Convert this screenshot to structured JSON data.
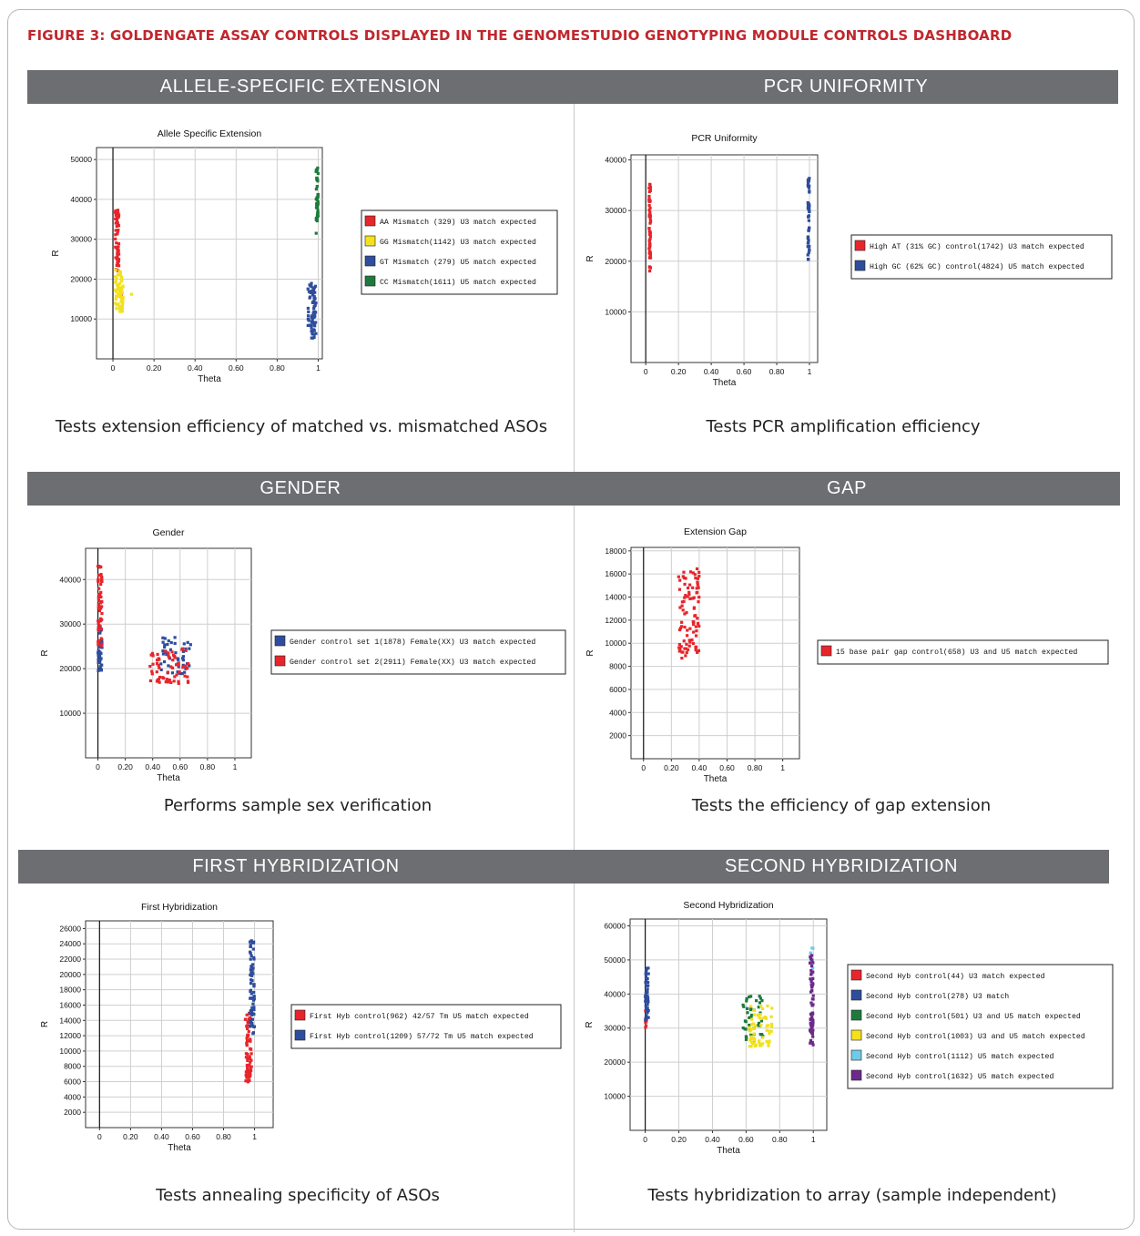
{
  "figure_title": "FIGURE 3: GOLDENGATE ASSAY CONTROLS DISPLAYED IN THE GENOMESTUDIO GENOTYPING MODULE CONTROLS DASHBOARD",
  "panels": [
    {
      "id": "ase",
      "banner": "ALLELE-SPECIFIC EXTENSION",
      "caption": "Tests extension efficiency of matched vs. mismatched ASOs"
    },
    {
      "id": "pcr",
      "banner": "PCR UNIFORMITY",
      "caption": "Tests PCR amplification efficiency"
    },
    {
      "id": "gender",
      "banner": "GENDER",
      "caption": "Performs sample sex verification"
    },
    {
      "id": "gap",
      "banner": "GAP",
      "caption": "Tests the efficiency of gap extension"
    },
    {
      "id": "hyb1",
      "banner": "FIRST HYBRIDIZATION",
      "caption": "Tests annealing specificity of ASOs"
    },
    {
      "id": "hyb2",
      "banner": "SECOND HYBRIDIZATION",
      "caption": "Tests hybridization to array (sample independent)"
    }
  ],
  "colors": {
    "red": "#e8252b",
    "yellow": "#f2e11c",
    "blue": "#2e4d9c",
    "green": "#1e7a3c",
    "cyan": "#6fcbe8",
    "purple": "#6c2a8a",
    "banner": "#6d6e71",
    "title": "#c0272d"
  },
  "chart_data": [
    {
      "type": "scatter",
      "title": "Allele Specific Extension",
      "xlabel": "Theta",
      "ylabel": "R",
      "xlim": [
        -0.08,
        1.02
      ],
      "ylim": [
        0,
        53000
      ],
      "xticks": [
        "0",
        "0.20",
        "0.40",
        "0.60",
        "0.80",
        "1"
      ],
      "yticks": [
        "10000",
        "20000",
        "30000",
        "40000",
        "50000"
      ],
      "grid": true,
      "legend_placement": "right",
      "series": [
        {
          "name": "AA Mismatch (329) U3 match expected",
          "color": "red",
          "x_range": [
            0.01,
            0.03
          ],
          "y_range": [
            22000,
            37500
          ],
          "n": 60,
          "extra": [
            [
              0.04,
              16000
            ]
          ]
        },
        {
          "name": "GG Mismatch(1142) U3 match expected",
          "color": "yellow",
          "x_range": [
            0.01,
            0.05
          ],
          "y_range": [
            11500,
            22500
          ],
          "n": 70,
          "extra": [
            [
              0.09,
              16200
            ]
          ]
        },
        {
          "name": "GT Mismatch (279) U5 match expected",
          "color": "blue",
          "x_range": [
            0.95,
            0.99
          ],
          "y_range": [
            5200,
            19000
          ],
          "n": 70
        },
        {
          "name": "CC Mismatch(1611) U5 match expected",
          "color": "green",
          "x_range": [
            0.99,
            1.0
          ],
          "y_range": [
            34500,
            48000
          ],
          "n": 45,
          "extra": [
            [
              0.99,
              31500
            ]
          ]
        }
      ]
    },
    {
      "type": "scatter",
      "title": "PCR Uniformity",
      "xlabel": "Theta",
      "ylabel": "R",
      "xlim": [
        -0.09,
        1.05
      ],
      "ylim": [
        0,
        41000
      ],
      "xticks": [
        "0",
        "0.20",
        "0.40",
        "0.60",
        "0.80",
        "1"
      ],
      "yticks": [
        "10000",
        "20000",
        "30000",
        "40000"
      ],
      "grid": true,
      "legend_placement": "right",
      "series": [
        {
          "name": "High AT (31% GC) control(1742) U3 match expected",
          "color": "red",
          "x_range": [
            0.02,
            0.03
          ],
          "y_range": [
            18000,
            35500
          ],
          "n": 60
        },
        {
          "name": "High GC (62% GC) control(4824) U5 match expected",
          "color": "blue",
          "x_range": [
            0.99,
            1.0
          ],
          "y_range": [
            20000,
            37000
          ],
          "n": 50
        }
      ]
    },
    {
      "type": "scatter",
      "title": "Gender",
      "xlabel": "Theta",
      "ylabel": "R",
      "xlim": [
        -0.09,
        1.12
      ],
      "ylim": [
        0,
        47000
      ],
      "xticks": [
        "0",
        "0.20",
        "0.40",
        "0.60",
        "0.80",
        "1"
      ],
      "yticks": [
        "10000",
        "20000",
        "30000",
        "40000"
      ],
      "grid": true,
      "legend_placement": "right",
      "series": [
        {
          "name": "Gender control set 1(1878) Female(XX) U3 match expected",
          "color": "blue",
          "x_range": [
            0.0,
            0.03
          ],
          "y_range": [
            19500,
            30000
          ],
          "n": 40,
          "cluster": {
            "x_range": [
              0.45,
              0.68
            ],
            "y_range": [
              18500,
              27000
            ],
            "n": 45
          }
        },
        {
          "name": "Gender control set 2(2911) Female(XX) U3 match expected",
          "color": "red",
          "x_range": [
            0.0,
            0.03
          ],
          "y_range": [
            25000,
            43000
          ],
          "n": 50,
          "cluster": {
            "x_range": [
              0.38,
              0.66
            ],
            "y_range": [
              16500,
              24500
            ],
            "n": 60
          }
        }
      ]
    },
    {
      "type": "scatter",
      "title": "Extension Gap",
      "xlabel": "Theta",
      "ylabel": "R",
      "xlim": [
        -0.09,
        1.12
      ],
      "ylim": [
        0,
        18300
      ],
      "xticks": [
        "0",
        "0.20",
        "0.40",
        "0.60",
        "0.80",
        "1"
      ],
      "yticks": [
        "2000",
        "4000",
        "6000",
        "8000",
        "10000",
        "12000",
        "14000",
        "16000",
        "18000"
      ],
      "grid": true,
      "legend_placement": "right",
      "series": [
        {
          "name": "15 base pair gap control(658) U3 and U5 match expected",
          "color": "red",
          "x_range": [
            0.25,
            0.4
          ],
          "y_range": [
            8600,
            16500
          ],
          "n": 90
        }
      ]
    },
    {
      "type": "scatter",
      "title": "First Hybridization",
      "xlabel": "Theta",
      "ylabel": "R",
      "xlim": [
        -0.09,
        1.12
      ],
      "ylim": [
        0,
        27000
      ],
      "xticks": [
        "0",
        "0.20",
        "0.40",
        "0.60",
        "0.80",
        "1"
      ],
      "yticks": [
        "2000",
        "4000",
        "6000",
        "8000",
        "10000",
        "12000",
        "14000",
        "16000",
        "18000",
        "20000",
        "22000",
        "24000",
        "26000"
      ],
      "grid": true,
      "legend_placement": "right",
      "series": [
        {
          "name": "First Hyb control(962) 42/57 Tm U5 match expected",
          "color": "red",
          "x_range": [
            0.94,
            0.98
          ],
          "y_range": [
            5200,
            15000
          ],
          "n": 70
        },
        {
          "name": "First Hyb control(1209) 57/72 Tm U5 match expected",
          "color": "blue",
          "x_range": [
            0.97,
            1.0
          ],
          "y_range": [
            12000,
            24500
          ],
          "n": 70
        }
      ]
    },
    {
      "type": "scatter",
      "title": "Second Hybridization",
      "xlabel": "Theta",
      "ylabel": "R",
      "xlim": [
        -0.09,
        1.08
      ],
      "ylim": [
        0,
        62000
      ],
      "xticks": [
        "0",
        "0.20",
        "0.40",
        "0.60",
        "0.80",
        "1"
      ],
      "yticks": [
        "10000",
        "20000",
        "30000",
        "40000",
        "50000",
        "60000"
      ],
      "grid": true,
      "legend_placement": "right",
      "series": [
        {
          "name": "Second Hyb control(44) U3 match expected",
          "color": "red",
          "x_range": [
            0.0,
            0.01
          ],
          "y_range": [
            30000,
            36000
          ],
          "n": 8
        },
        {
          "name": "Second Hyb control(278) U3 match",
          "color": "blue",
          "x_range": [
            0.0,
            0.02
          ],
          "y_range": [
            31500,
            48500
          ],
          "n": 50
        },
        {
          "name": "Second Hyb control(501) U3 and U5 match expected",
          "color": "green",
          "x_range": [
            0.58,
            0.7
          ],
          "y_range": [
            25500,
            39500
          ],
          "n": 45
        },
        {
          "name": "Second Hyb control(1003) U3 and U5 match expected",
          "color": "yellow",
          "x_range": [
            0.62,
            0.76
          ],
          "y_range": [
            24500,
            36500
          ],
          "n": 60
        },
        {
          "name": "Second Hyb control(1112) U5 match expected",
          "color": "cyan",
          "x_range": [
            0.98,
            1.0
          ],
          "y_range": [
            45000,
            54500
          ],
          "n": 12
        },
        {
          "name": "Second Hyb control(1632) U5 match expected",
          "color": "purple",
          "x_range": [
            0.98,
            1.0
          ],
          "y_range": [
            24000,
            53000
          ],
          "n": 60
        }
      ]
    }
  ]
}
